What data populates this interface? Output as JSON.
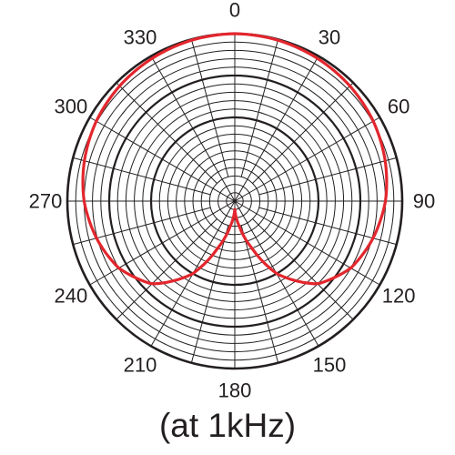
{
  "caption": "(at 1kHz)",
  "chart_data": {
    "type": "polar",
    "angle_ticks": [
      "0",
      "30",
      "60",
      "90",
      "120",
      "150",
      "180",
      "210",
      "240",
      "270",
      "300",
      "330"
    ],
    "angle_tick_values": [
      0,
      30,
      60,
      90,
      120,
      150,
      180,
      210,
      240,
      270,
      300,
      330
    ],
    "radial_range_db": [
      -40,
      0
    ],
    "radial_step_db": 2,
    "major_ring_db": [
      0,
      -10,
      -20
    ],
    "grid": true,
    "line_color": "#e3262d",
    "grid_color": "#231f20",
    "series": [
      {
        "angles_deg": [
          0,
          15,
          30,
          45,
          60,
          75,
          90,
          105,
          110,
          120,
          135,
          150,
          160,
          170,
          180,
          190,
          200,
          210,
          225,
          240,
          250,
          255,
          270,
          285,
          300,
          315,
          330,
          345
        ],
        "level_db": [
          0,
          -0.2,
          -0.6,
          -1.1,
          -1.8,
          -2.8,
          -4.0,
          -5.8,
          -6.5,
          -8.0,
          -12.0,
          -20.0,
          -28.0,
          -34.0,
          -38.0,
          -34.0,
          -28.0,
          -20.0,
          -12.0,
          -8.0,
          -6.5,
          -5.8,
          -4.0,
          -2.8,
          -1.8,
          -1.1,
          -0.6,
          -0.2
        ]
      }
    ]
  }
}
